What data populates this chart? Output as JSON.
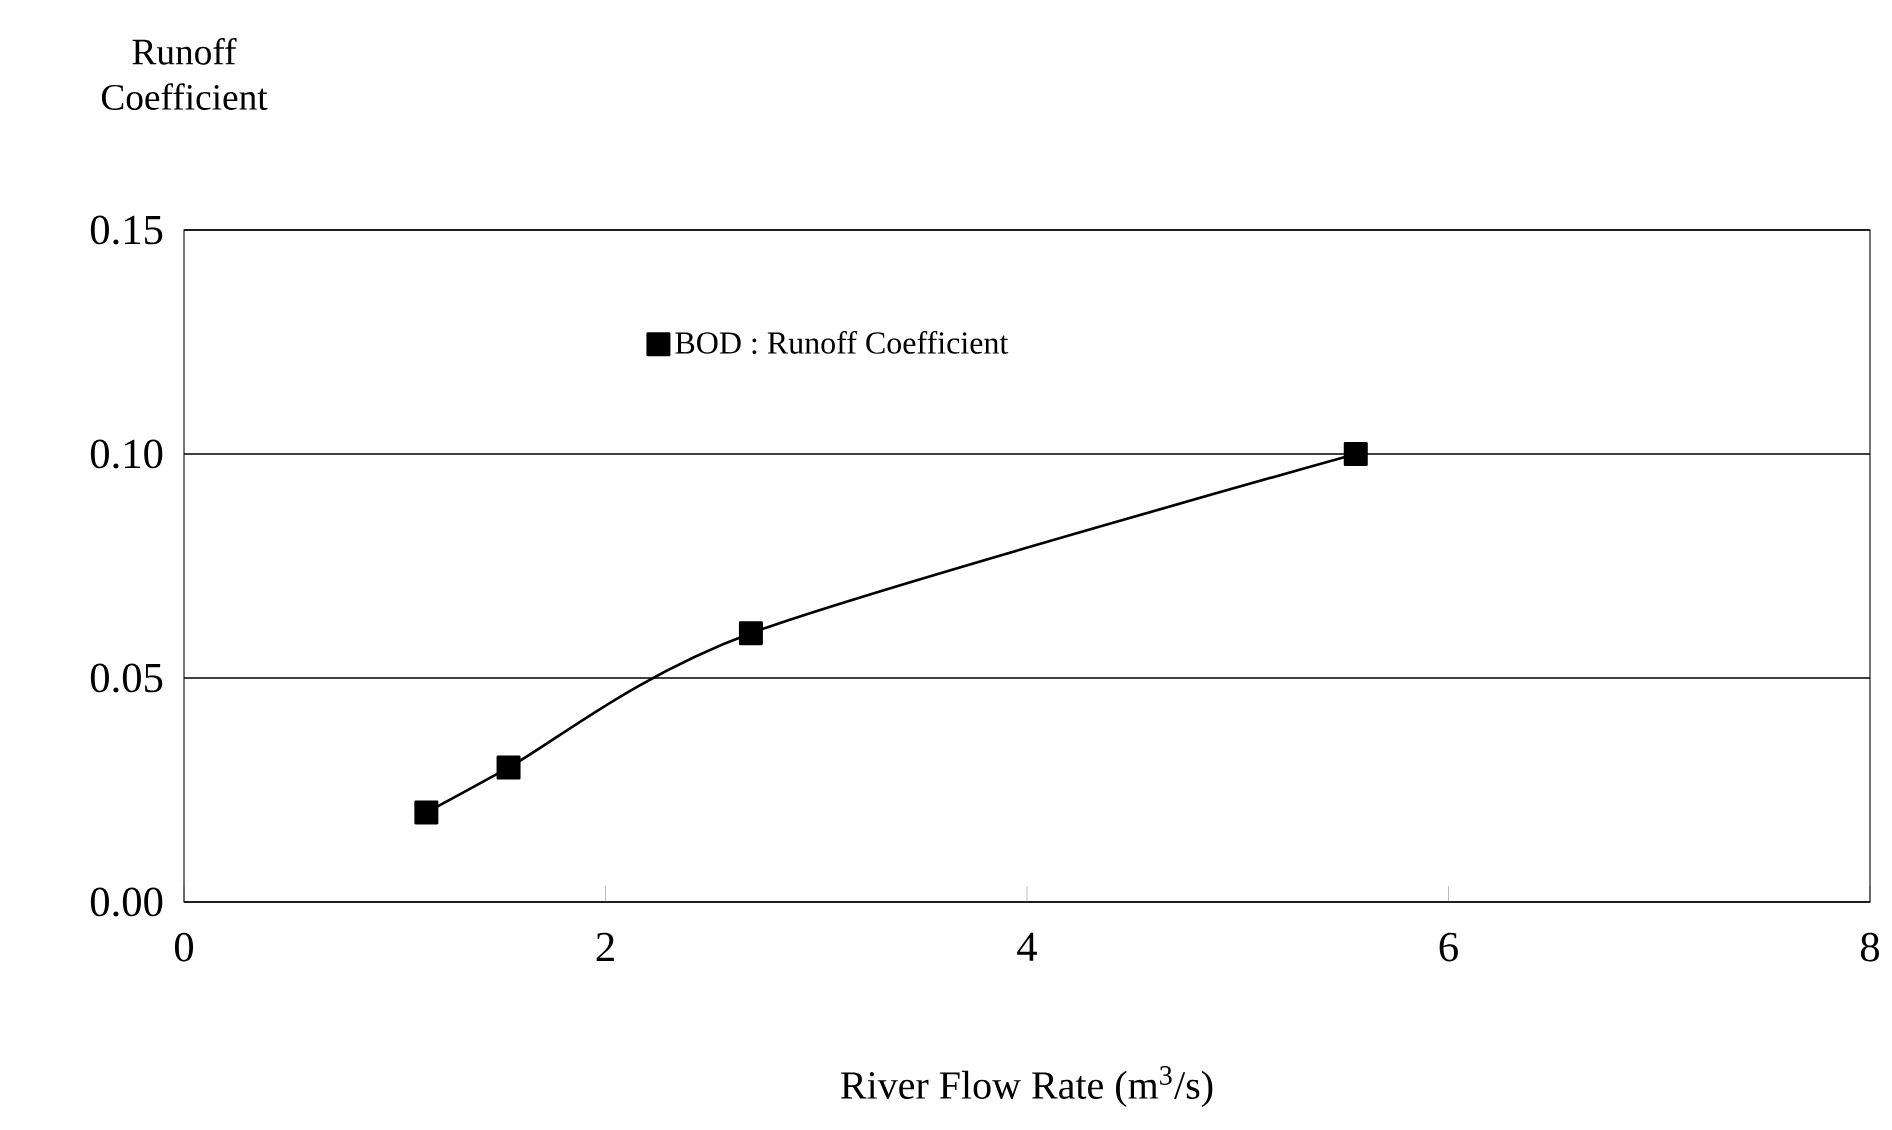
{
  "chart_data": {
    "type": "line",
    "xlabel": "River Flow Rate (m$^{3}$/s)",
    "ylabel": "Runoff Coefficient",
    "series": [
      {
        "name": "BOD : Runoff Coefficient",
        "color": "#000000",
        "x": [
          1.15,
          1.54,
          2.69,
          5.56
        ],
        "values": [
          0.02,
          0.03,
          0.06,
          0.1
        ]
      }
    ],
    "xlim": [
      0,
      8
    ],
    "xticks": [
      0,
      2,
      4,
      6,
      8
    ],
    "ylim": [
      0,
      0.15
    ],
    "yticks": [
      {
        "value": 0,
        "label": "0.00"
      },
      {
        "value": 0.05,
        "label": "0.05"
      },
      {
        "value": 0.1,
        "label": "0.10"
      },
      {
        "value": 0.15,
        "label": "0.15"
      }
    ],
    "grid": "y",
    "legend": "top left",
    "marker": "square",
    "line_style": "solid"
  }
}
